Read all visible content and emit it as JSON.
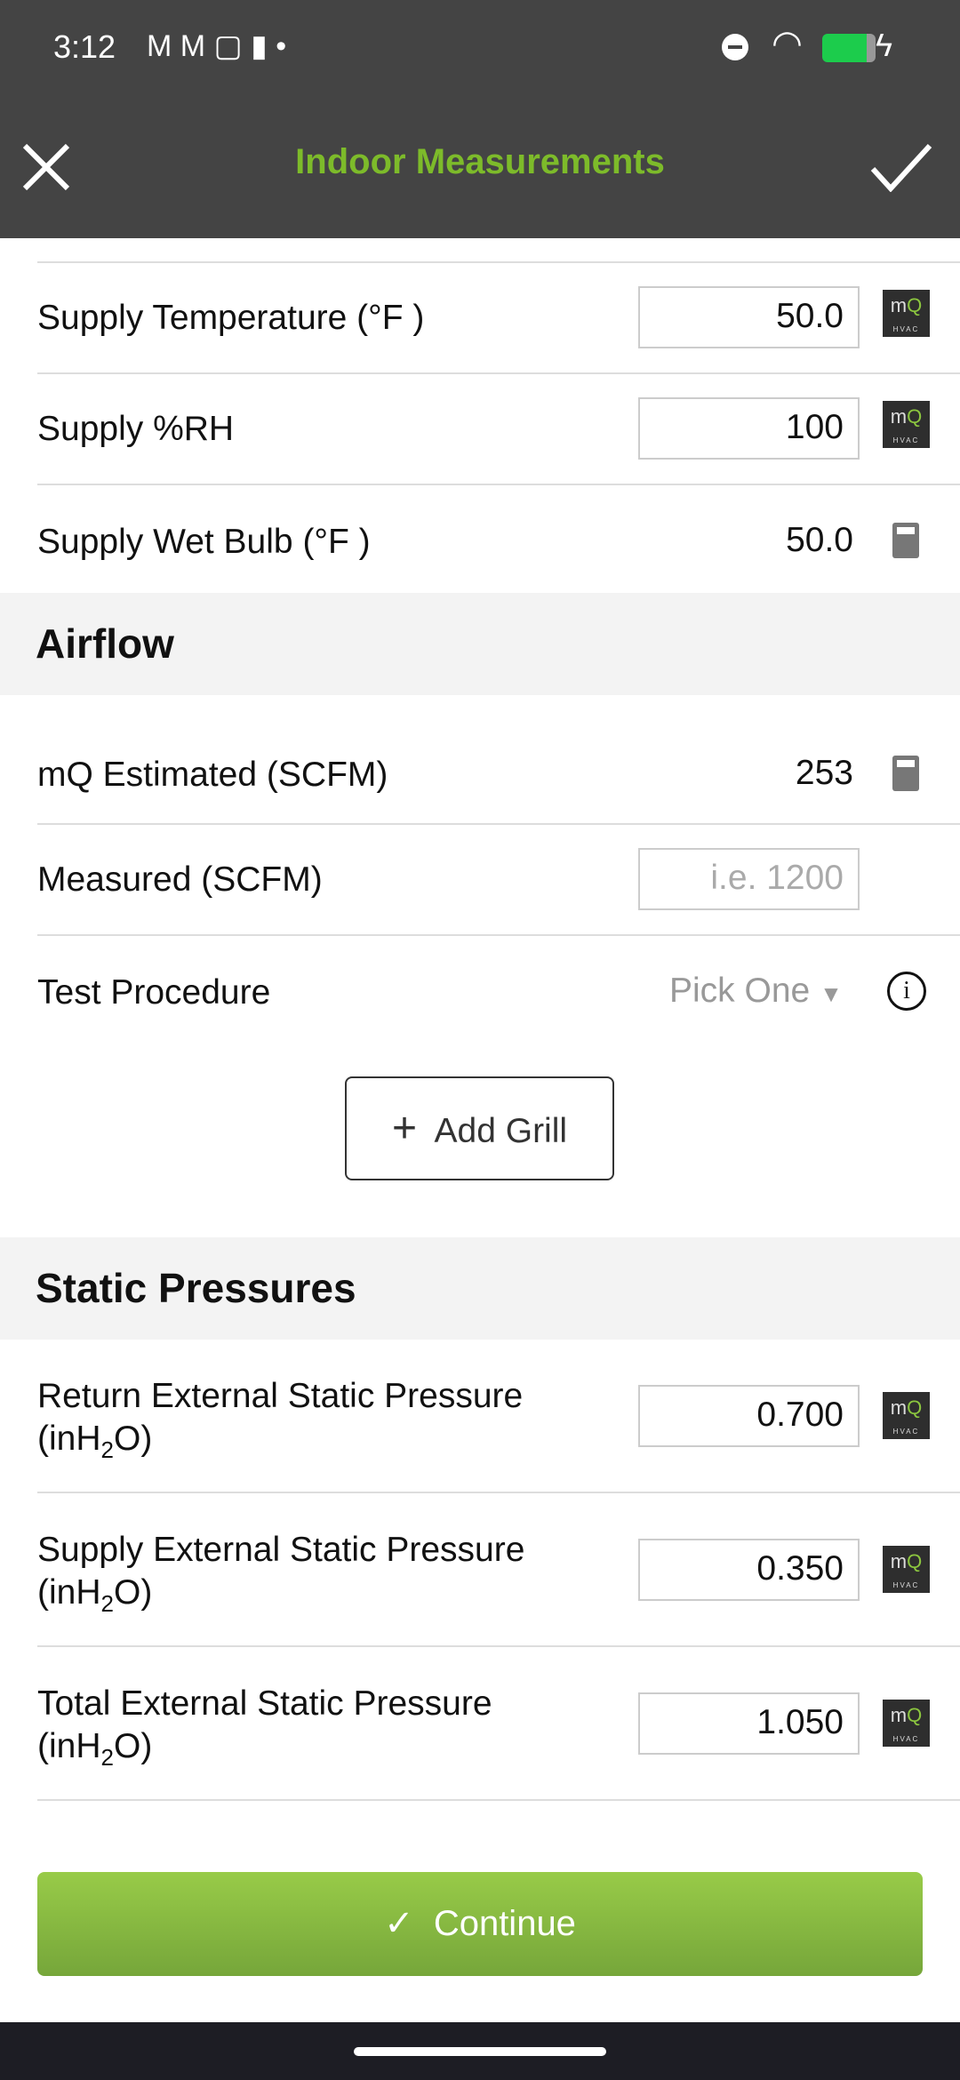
{
  "status_bar": {
    "time": "3:12",
    "icons": [
      "gmail-icon",
      "gmail-icon",
      "copy-icon",
      "keyhole-icon",
      "dot-icon",
      "dnd-icon",
      "wifi-icon",
      "battery-charging-icon"
    ]
  },
  "app_bar": {
    "title": "Indoor Measurements",
    "close_icon": "close-icon",
    "confirm_icon": "check-icon",
    "title_color": "#7dbb2a"
  },
  "supply": [
    {
      "label": "Supply Temperature (°F )",
      "value": "50.0",
      "icon": "mq-hvac-icon"
    },
    {
      "label": "Supply %RH",
      "value": "100",
      "icon": "mq-hvac-icon"
    },
    {
      "label": "Supply Wet Bulb (°F )",
      "value": "50.0",
      "icon": "calculator-icon"
    }
  ],
  "airflow": {
    "header": "Airflow",
    "estimated": {
      "label": "mQ Estimated (SCFM)",
      "value": "253"
    },
    "measured": {
      "label": "Measured (SCFM)",
      "placeholder": "i.e. 1200"
    },
    "procedure": {
      "label": "Test Procedure",
      "value": "Pick One"
    },
    "add_grill": "Add Grill"
  },
  "static": {
    "header": "Static Pressures",
    "unit_pre": "(inH",
    "unit_sub": "2",
    "unit_post": "O)",
    "rows": [
      {
        "label": "Return External Static Pressure",
        "value": "0.700"
      },
      {
        "label": "Supply External Static Pressure",
        "value": "0.350"
      },
      {
        "label": "Total External Static Pressure",
        "value": "1.050"
      }
    ]
  },
  "continue": "Continue",
  "mq_logo": {
    "m": "m",
    "q": "Q",
    "sub": "HVAC"
  },
  "accent": "#8cc63f"
}
